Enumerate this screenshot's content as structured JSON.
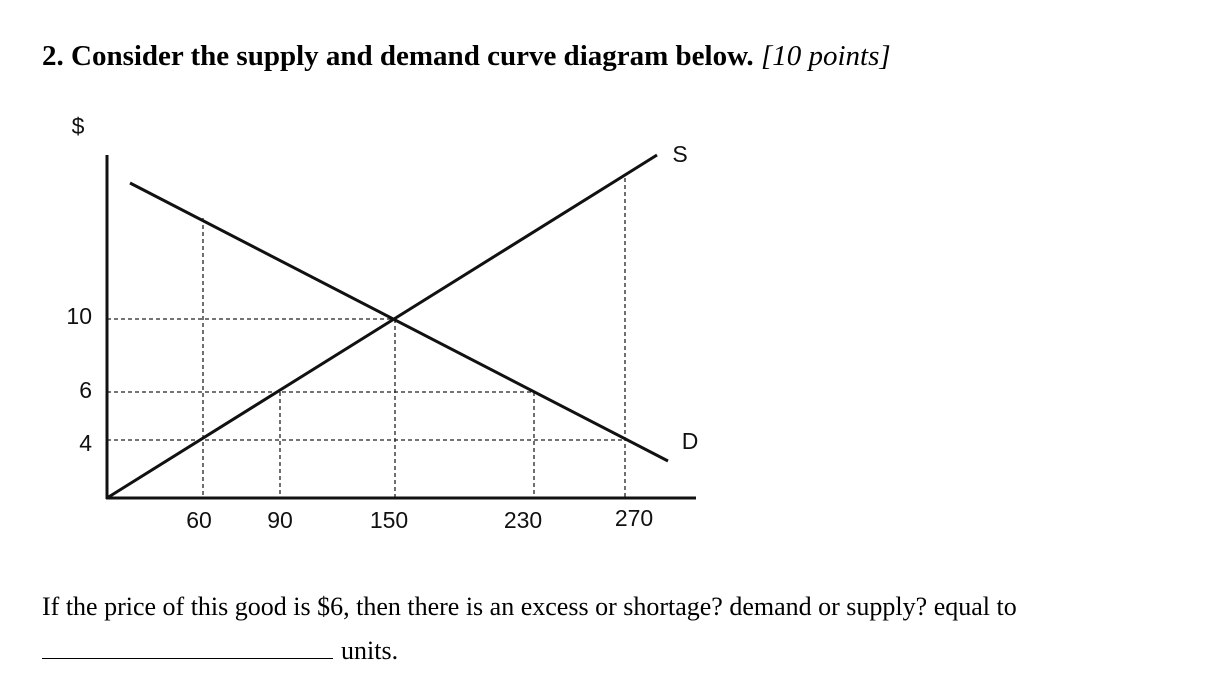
{
  "question": {
    "number": "2.",
    "text": "Consider the supply and demand curve diagram below.",
    "points": "[10 points]"
  },
  "diagram": {
    "y_axis_label": "$",
    "y_ticks": [
      "10",
      "6",
      "4"
    ],
    "x_ticks": [
      "60",
      "90",
      "150",
      "230",
      "270"
    ],
    "supply_label": "S",
    "demand_label": "D"
  },
  "prompt": {
    "text": "If the price of this good is $6, then there is an excess or shortage? demand or supply?  equal to",
    "units": "units."
  }
}
